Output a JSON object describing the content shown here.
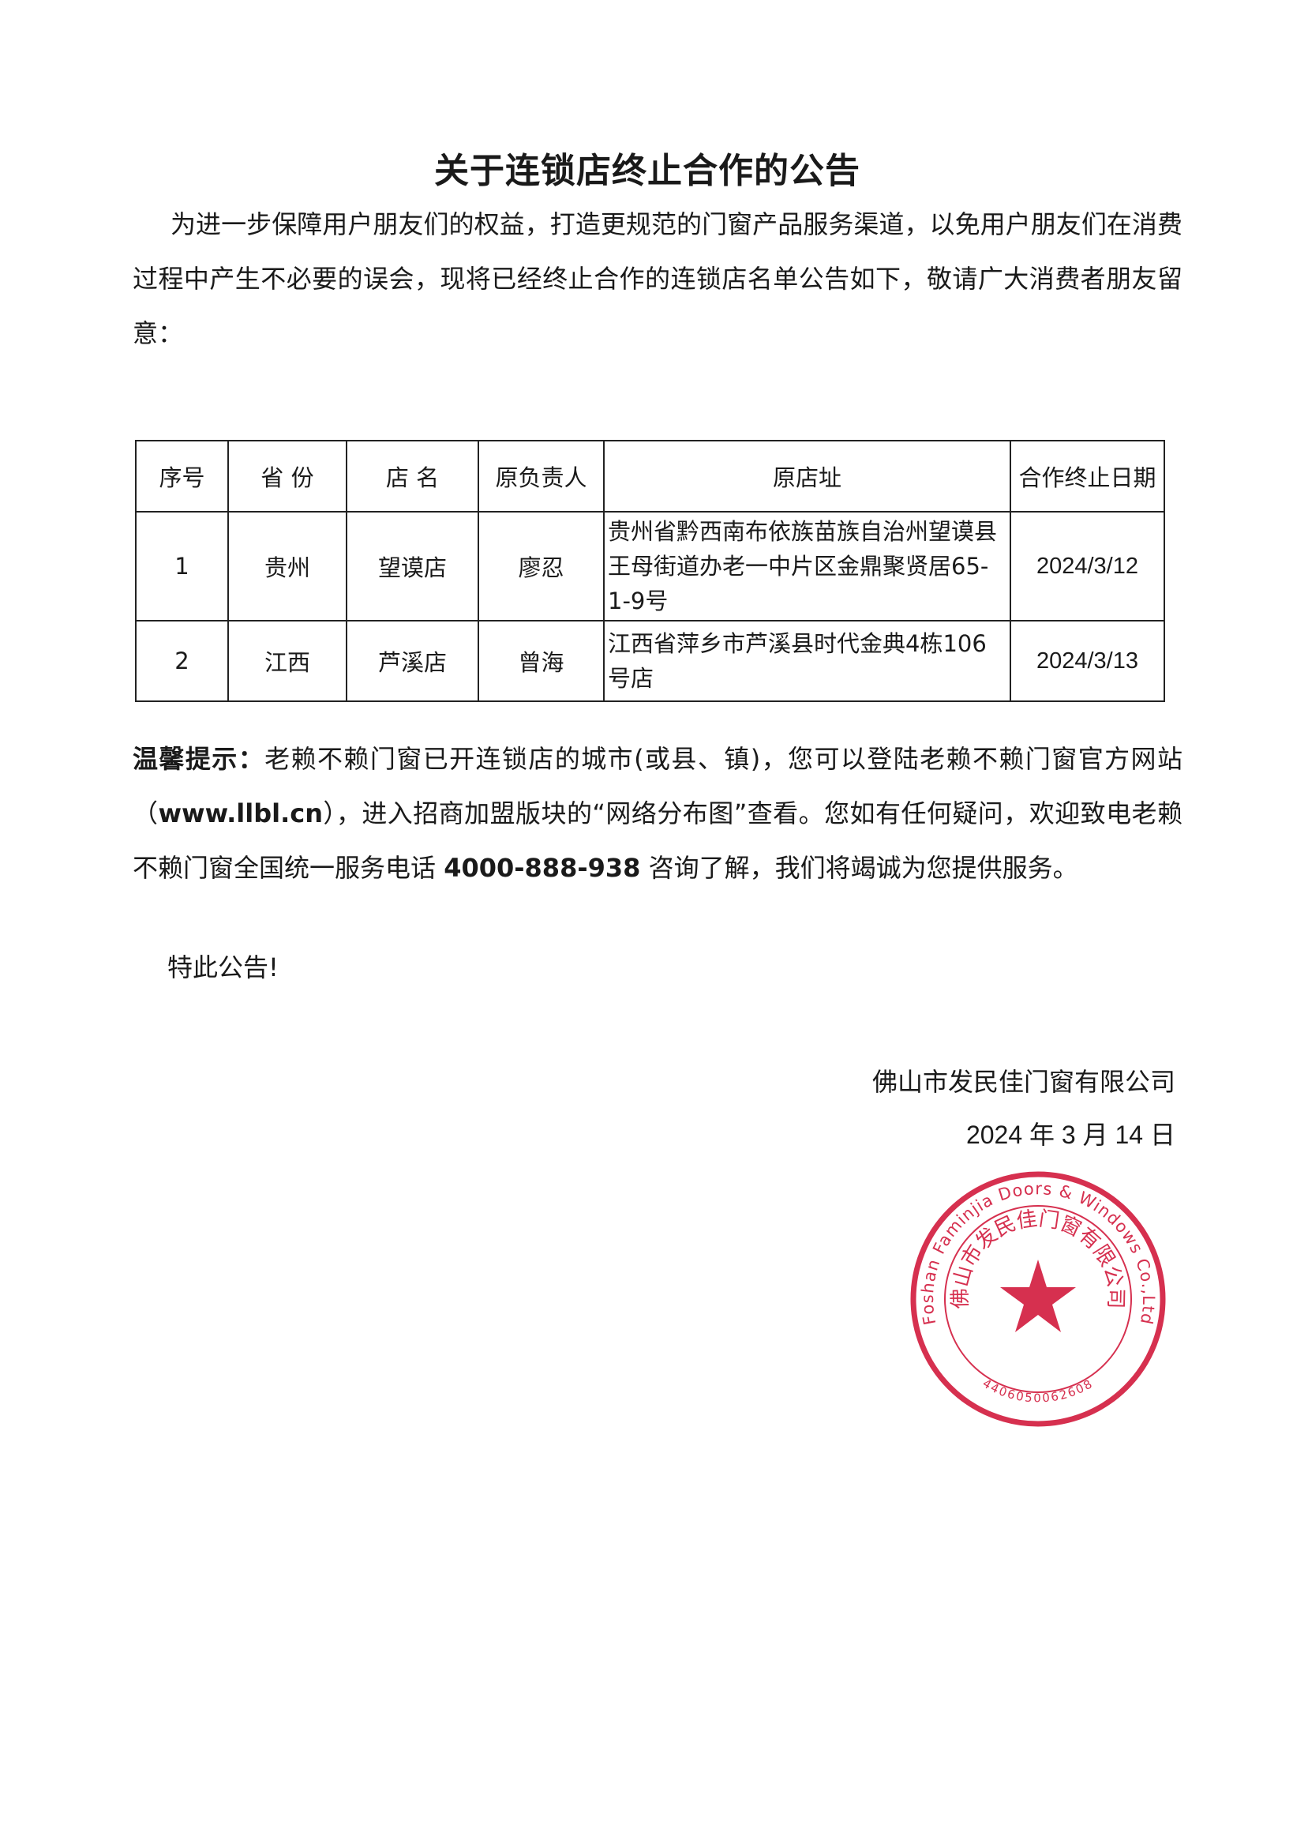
{
  "title": "关于连锁店终止合作的公告",
  "intro": "为进一步保障用户朋友们的权益，打造更规范的门窗产品服务渠道，以免用户朋友们在消费过程中产生不必要的误会，现将已经终止合作的连锁店名单公告如下，敬请广大消费者朋友留意：",
  "table": {
    "headers": [
      "序号",
      "省 份",
      "店 名",
      "原负责人",
      "原店址",
      "合作终止日期"
    ],
    "rows": [
      [
        "1",
        "贵州",
        "望谟店",
        "廖忍",
        "贵州省黔西南布依族苗族自治州望谟县王母街道办老一中片区金鼎聚贤居65-1-9号",
        "2024/3/12"
      ],
      [
        "2",
        "江西",
        "芦溪店",
        "曾海",
        "江西省萍乡市芦溪县时代金典4栋106号店",
        "2024/3/13"
      ]
    ]
  },
  "tip": {
    "label": "温馨提示：",
    "text1": "老赖不赖门窗已开连锁店的城市(或县、镇)，您可以登陆老赖不赖门窗官方网站（",
    "website": "www.llbl.cn",
    "text2": "），进入招商加盟版块的“网络分布图”查看。您如有任何疑问，欢迎致电老赖不赖门窗全国统一服务电话 ",
    "phone": "4000-888-938",
    "text3": " 咨询了解，我们将竭诚为您提供服务。"
  },
  "closing": "特此公告!",
  "signature": {
    "company": "佛山市发民佳门窗有限公司",
    "date": "2024 年 3 月 14 日"
  },
  "stamp": {
    "outer_text": "Foshan Faminjia Doors & Windows Co.,Ltd",
    "inner_text": "佛山市发民佳门窗有限公司",
    "number": "4406050062608",
    "color": "#d6304f"
  }
}
